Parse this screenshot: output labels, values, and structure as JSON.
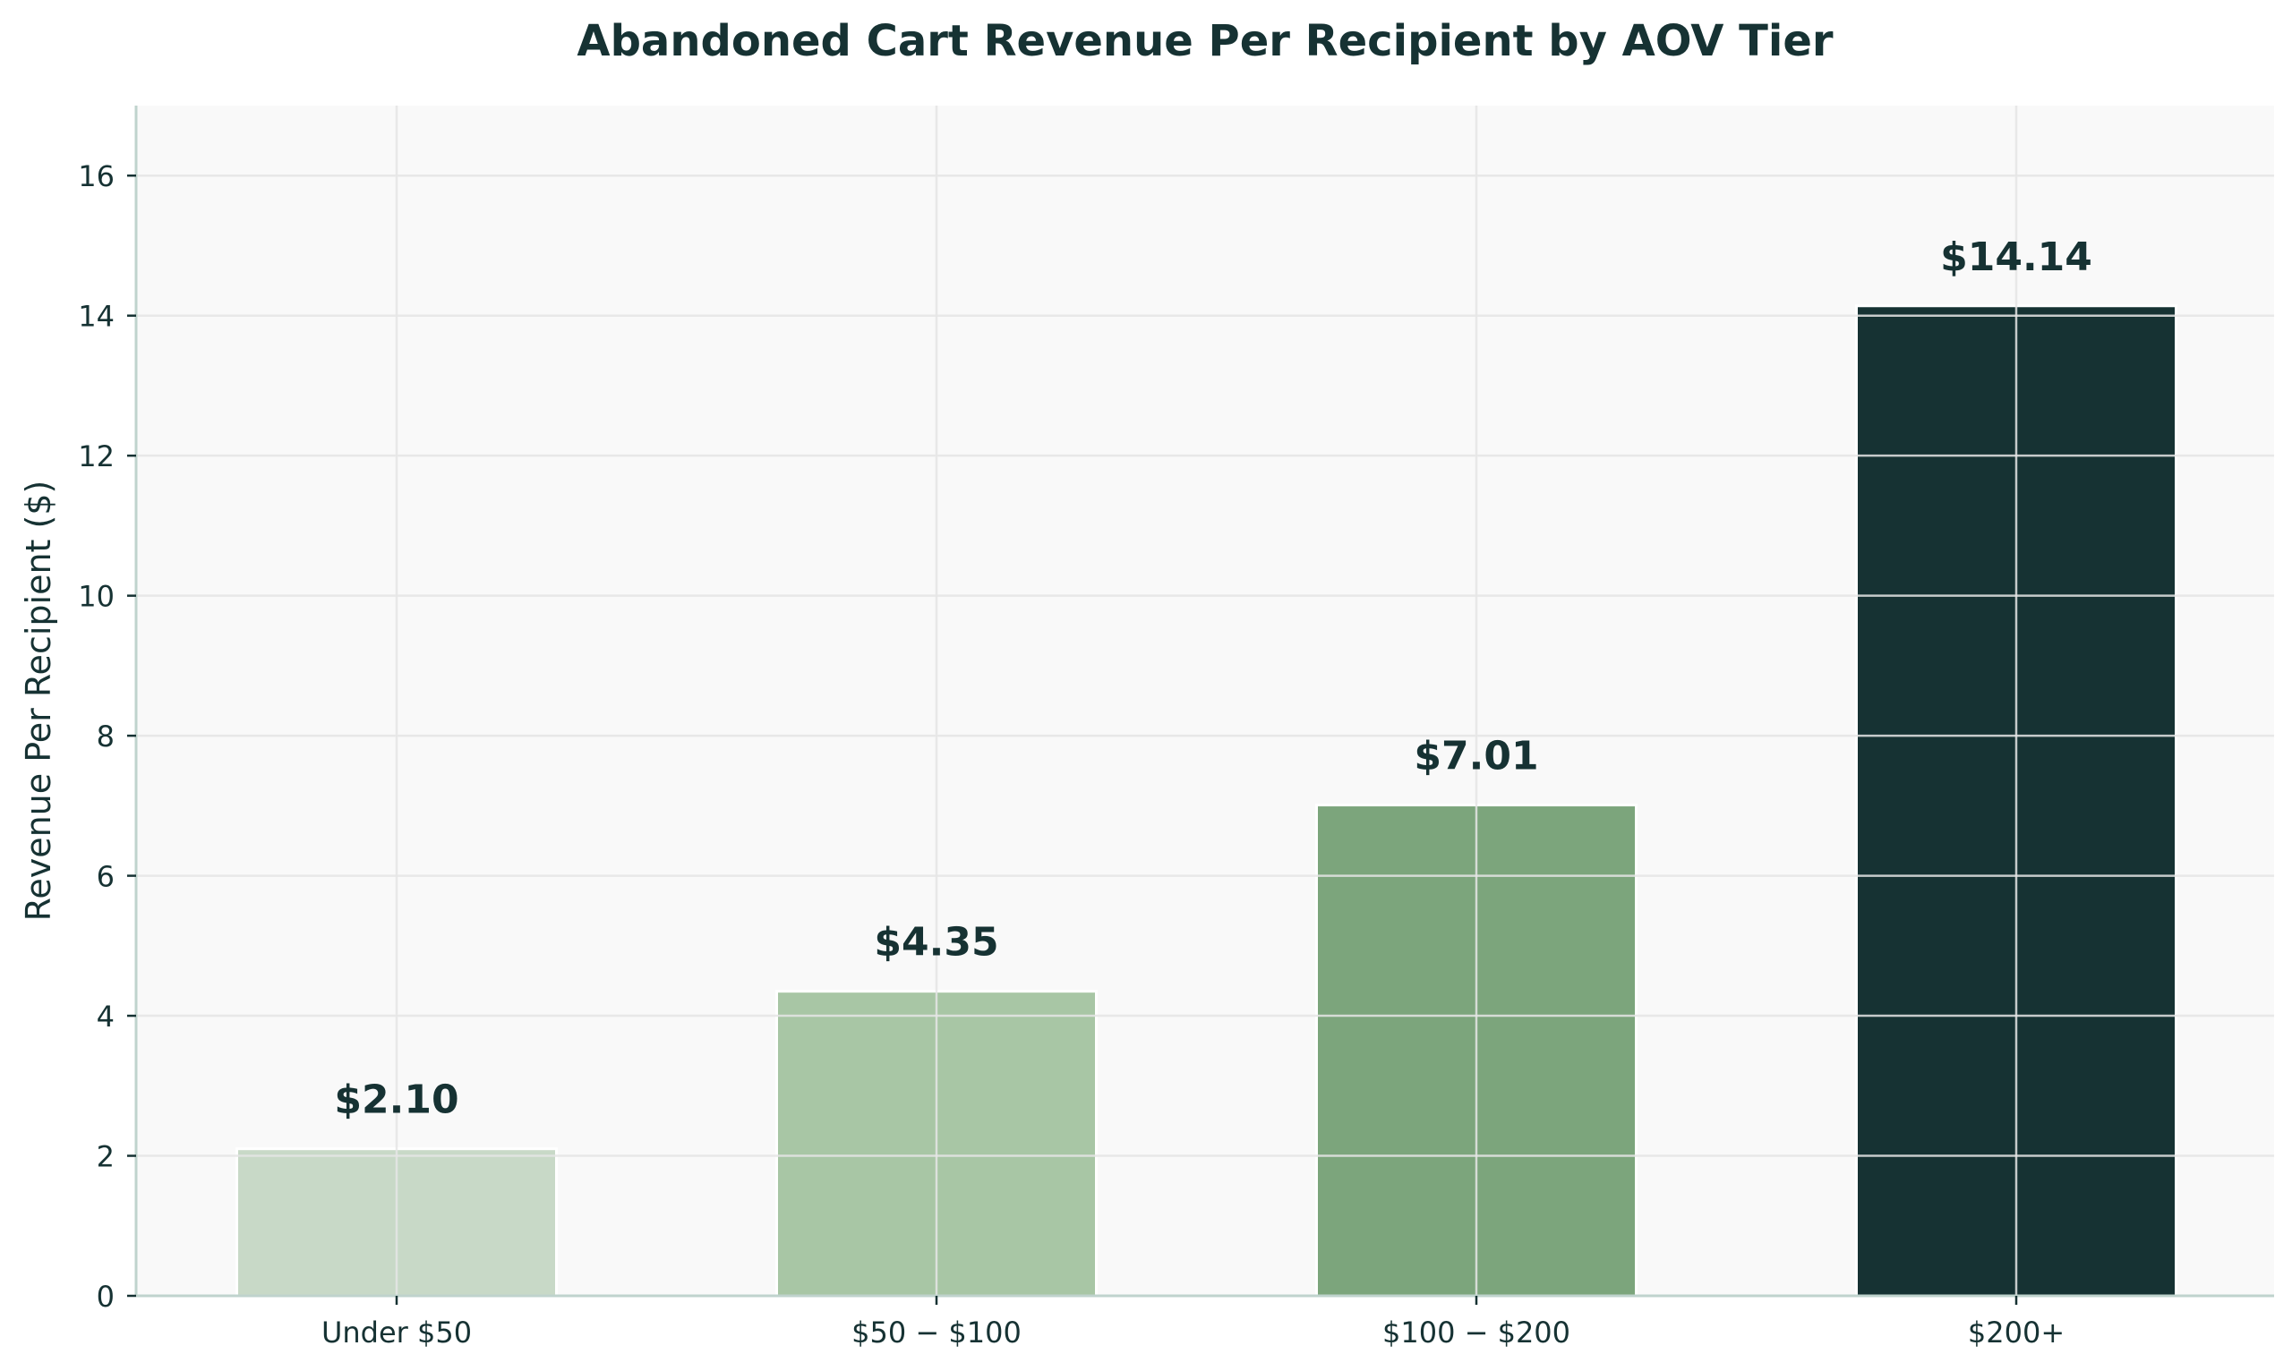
{
  "chart_data": {
    "type": "bar",
    "title": "Abandoned Cart Revenue Per Recipient by AOV Tier",
    "xlabel": "",
    "ylabel": "Revenue Per Recipient ($)",
    "categories": [
      "Under $50",
      "$50-$100",
      "$100-$200",
      "$200+"
    ],
    "tick_labels": [
      "Under $50",
      "$50 − $100",
      "$100 − $200",
      "$200+"
    ],
    "values": [
      2.1,
      4.35,
      7.01,
      14.14
    ],
    "value_labels": [
      "$2.10",
      "$4.35",
      "$7.01",
      "$14.14"
    ],
    "ylim": [
      0,
      17
    ],
    "yticks": [
      0,
      2,
      4,
      6,
      8,
      10,
      12,
      14,
      16
    ],
    "grid": true,
    "legend": "none",
    "colors": {
      "bars": [
        "#c8d9c7",
        "#a8c6a5",
        "#7ca57c",
        "#163233"
      ],
      "text": "#163233",
      "plot_background": "#f9f9f9",
      "grid": "#e6e6e6",
      "axis": "#bfd3cd"
    }
  }
}
